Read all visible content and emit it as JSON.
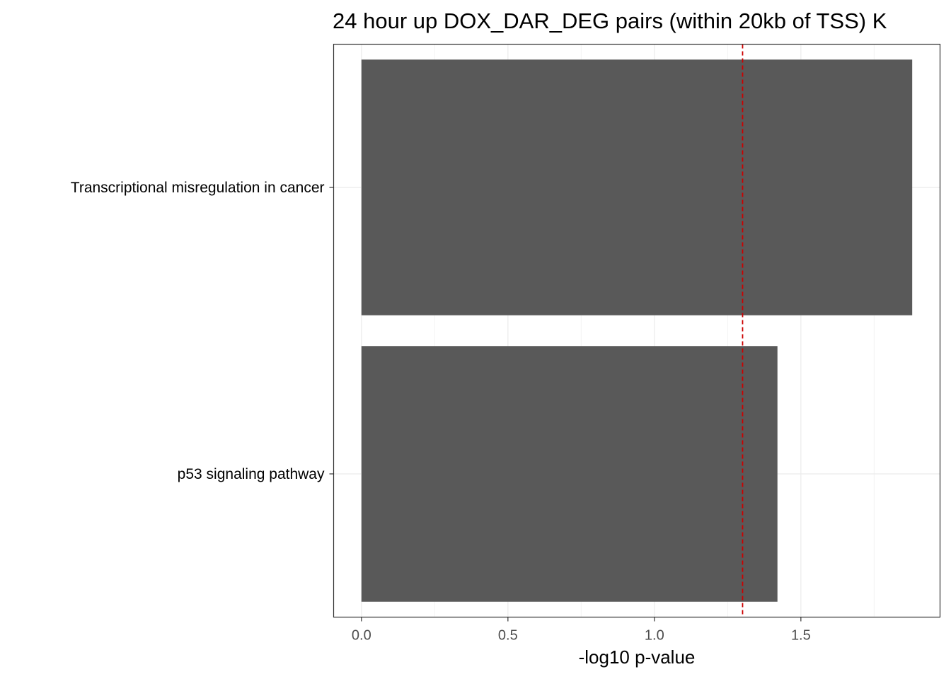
{
  "chart_data": {
    "type": "bar",
    "orientation": "horizontal",
    "title": "24 hour up DOX_DAR_DEG pairs (within 20kb of TSS) K",
    "xlabel": "-log10 p-value",
    "ylabel": "",
    "categories": [
      "Transcriptional misregulation in cancer",
      "p53 signaling pathway"
    ],
    "values": [
      1.88,
      1.42
    ],
    "xlim": [
      -0.095,
      1.975
    ],
    "x_ticks": [
      "0.0",
      "0.5",
      "1.0",
      "1.5"
    ],
    "x_tick_values": [
      0.0,
      0.5,
      1.0,
      1.5
    ],
    "x_minor_grid": [
      0.25,
      0.75,
      1.25,
      1.75
    ],
    "threshold": 1.301,
    "grid": true,
    "colors": {
      "bar": "#595959",
      "threshold": "#cc0000",
      "grid_major": "#ebebeb",
      "grid_minor": "#f3f3f3",
      "panel_border": "#333333"
    }
  }
}
